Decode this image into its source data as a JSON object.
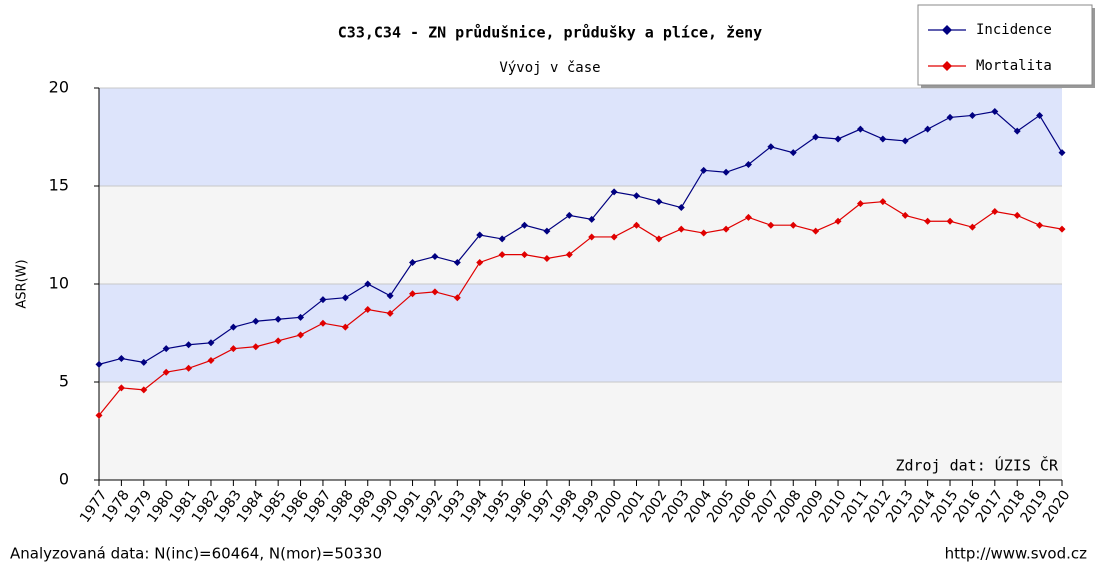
{
  "chart_data": {
    "type": "line",
    "title": "C33,C34 - ZN průdušnice, průdušky a plíce, ženy",
    "subtitle": "Vývoj v čase",
    "y_label": "ASR(W)",
    "source": "Zdroj dat: ÚZIS ČR",
    "footer_left": "Analyzovaná data: N(inc)=60464, N(mor)=50330",
    "footer_right": "http://www.svod.cz",
    "categories": [
      "1977",
      "1978",
      "1979",
      "1980",
      "1981",
      "1982",
      "1983",
      "1984",
      "1985",
      "1986",
      "1987",
      "1988",
      "1989",
      "1990",
      "1991",
      "1992",
      "1993",
      "1994",
      "1995",
      "1996",
      "1997",
      "1998",
      "1999",
      "2000",
      "2001",
      "2002",
      "2003",
      "2004",
      "2005",
      "2006",
      "2007",
      "2008",
      "2009",
      "2010",
      "2011",
      "2012",
      "2013",
      "2014",
      "2015",
      "2016",
      "2017",
      "2018",
      "2019",
      "2020"
    ],
    "series": [
      {
        "name": "Incidence",
        "color": "#000080",
        "values": [
          5.9,
          6.2,
          6.0,
          6.7,
          6.9,
          7.0,
          7.8,
          8.1,
          8.2,
          8.3,
          9.2,
          9.3,
          10.0,
          9.4,
          11.1,
          11.4,
          11.1,
          12.5,
          12.3,
          13.0,
          12.7,
          13.5,
          13.3,
          14.7,
          14.5,
          14.2,
          13.9,
          15.8,
          15.7,
          16.1,
          17.0,
          16.7,
          17.5,
          17.4,
          17.9,
          17.4,
          17.3,
          17.9,
          18.5,
          18.6,
          18.8,
          17.8,
          18.6,
          16.7
        ]
      },
      {
        "name": "Mortalita",
        "color": "#e00000",
        "values": [
          3.3,
          4.7,
          4.6,
          5.5,
          5.7,
          6.1,
          6.7,
          6.8,
          7.1,
          7.4,
          8.0,
          7.8,
          8.7,
          8.5,
          9.5,
          9.6,
          9.3,
          11.1,
          11.5,
          11.5,
          11.3,
          11.5,
          12.4,
          12.4,
          13.0,
          12.3,
          12.8,
          12.6,
          12.8,
          13.4,
          13.0,
          13.0,
          12.7,
          13.2,
          14.1,
          14.2,
          13.5,
          13.2,
          13.2,
          12.9,
          13.7,
          13.5,
          13.0,
          12.8
        ]
      }
    ],
    "ylim": [
      0,
      20
    ],
    "yticks": [
      0,
      5,
      10,
      15,
      20
    ],
    "band_colors": [
      "#f5f5f5",
      "#dde4fb"
    ],
    "legend": "top-right"
  }
}
